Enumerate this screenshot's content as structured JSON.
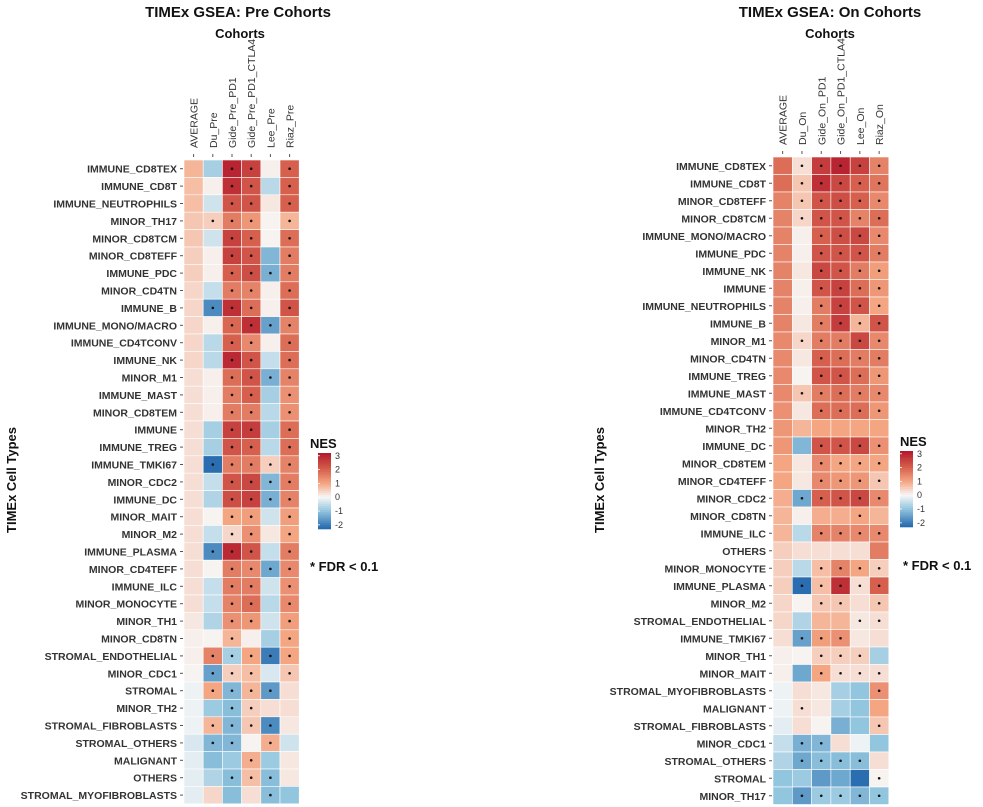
{
  "chart_data": [
    {
      "type": "heatmap",
      "title": "TIMEx GSEA: Pre Cohorts",
      "xlabel": "Cohorts",
      "ylabel": "TIMEx Cell Types",
      "legend_title": "NES",
      "legend_ticks": [
        3,
        2,
        1,
        0,
        -1,
        -2
      ],
      "color_range": [
        -2.3,
        3.2
      ],
      "annotation": "* FDR < 0.1",
      "columns": [
        "AVERAGE",
        "Du_Pre",
        "Gide_Pre_PD1",
        "Gide_Pre_PD1_CTLA4",
        "Lee_Pre",
        "Riaz_Pre"
      ],
      "rows": [
        {
          "label": "IMMUNE_CD8TEX",
          "nes": [
            0.8,
            -0.8,
            3,
            2.5,
            0.1,
            2
          ],
          "sig": "001101"
        },
        {
          "label": "IMMUNE_CD8T",
          "nes": [
            0.7,
            0.1,
            2.8,
            2.2,
            -0.6,
            2
          ],
          "sig": "001101"
        },
        {
          "label": "IMMUNE_NEUTROPHILS",
          "nes": [
            0.7,
            -0.4,
            2.2,
            2.2,
            0.2,
            2
          ],
          "sig": "001101"
        },
        {
          "label": "MINOR_TH17",
          "nes": [
            0.6,
            0.5,
            1.6,
            1.2,
            0.05,
            0.8
          ],
          "sig": "011101"
        },
        {
          "label": "MINOR_CD8TCM",
          "nes": [
            0.6,
            -0.4,
            2.5,
            2,
            0.05,
            1.8
          ],
          "sig": "001101"
        },
        {
          "label": "MINOR_CD8TEFF",
          "nes": [
            0.5,
            0.1,
            2.5,
            2.2,
            -1.2,
            1.6
          ],
          "sig": "001101"
        },
        {
          "label": "IMMUNE_PDC",
          "nes": [
            0.5,
            0.1,
            2,
            2.3,
            -1.3,
            1.6
          ],
          "sig": "001111"
        },
        {
          "label": "MINOR_CD4TN",
          "nes": [
            0.4,
            -0.5,
            1.6,
            1.5,
            0.1,
            1.8
          ],
          "sig": "001101"
        },
        {
          "label": "IMMUNE_B",
          "nes": [
            0.4,
            -1.8,
            2.8,
            1.8,
            0.1,
            2.2
          ],
          "sig": "011101"
        },
        {
          "label": "IMMUNE_MONO/MACRO",
          "nes": [
            0.4,
            0.1,
            1.9,
            2.8,
            -1.5,
            1.5
          ],
          "sig": "001111"
        },
        {
          "label": "IMMUNE_CD4TCONV",
          "nes": [
            0.4,
            -0.6,
            2,
            1.4,
            0.1,
            1.8
          ],
          "sig": "001101"
        },
        {
          "label": "IMMUNE_NK",
          "nes": [
            0.4,
            -0.6,
            2.9,
            2.2,
            -0.5,
            1.8
          ],
          "sig": "001101"
        },
        {
          "label": "MINOR_M1",
          "nes": [
            0.3,
            0.1,
            1.8,
            2.2,
            -1.3,
            1.5
          ],
          "sig": "001111"
        },
        {
          "label": "IMMUNE_MAST",
          "nes": [
            0.3,
            0.1,
            1.6,
            2,
            -0.8,
            1.3
          ],
          "sig": "001101"
        },
        {
          "label": "MINOR_CD8TEM",
          "nes": [
            0.3,
            0.1,
            1.6,
            1.6,
            -0.6,
            1.3
          ],
          "sig": "001101"
        },
        {
          "label": "IMMUNE",
          "nes": [
            0.3,
            -0.8,
            2.5,
            2.6,
            -0.8,
            1.8
          ],
          "sig": "001101"
        },
        {
          "label": "IMMUNE_TREG",
          "nes": [
            0.3,
            -0.8,
            2.2,
            2,
            -0.6,
            1.8
          ],
          "sig": "001101"
        },
        {
          "label": "IMMUNE_TMKI67",
          "nes": [
            0.3,
            -2.2,
            1.6,
            1.6,
            0.5,
            1.5
          ],
          "sig": "011111"
        },
        {
          "label": "MINOR_CDC2",
          "nes": [
            0.3,
            -0.5,
            2.2,
            2.4,
            -1.2,
            1.6
          ],
          "sig": "001111"
        },
        {
          "label": "IMMUNE_DC",
          "nes": [
            0.3,
            -0.7,
            2.3,
            2.5,
            -1.3,
            1.5
          ],
          "sig": "001111"
        },
        {
          "label": "MINOR_MAIT",
          "nes": [
            0.3,
            0.05,
            1,
            1.1,
            -0.4,
            1.1
          ],
          "sig": "001101"
        },
        {
          "label": "MINOR_M2",
          "nes": [
            0.3,
            -0.5,
            0.4,
            1.3,
            0.2,
            1
          ],
          "sig": "001101"
        },
        {
          "label": "IMMUNE_PLASMA",
          "nes": [
            0.3,
            -1.8,
            2.9,
            2.2,
            -0.5,
            1.6
          ],
          "sig": "011101"
        },
        {
          "label": "MINOR_CD4TEFF",
          "nes": [
            0.3,
            0.05,
            1.6,
            1.4,
            -1.4,
            1.4
          ],
          "sig": "001111"
        },
        {
          "label": "IMMUNE_ILC",
          "nes": [
            0.3,
            -0.5,
            1.6,
            1.6,
            -0.4,
            1.3
          ],
          "sig": "001101"
        },
        {
          "label": "MINOR_MONOCYTE",
          "nes": [
            0.3,
            -0.5,
            1.5,
            1.8,
            -0.6,
            1.4
          ],
          "sig": "001101"
        },
        {
          "label": "MINOR_TH1",
          "nes": [
            0.2,
            -0.7,
            1.3,
            1.2,
            -0.4,
            1.1
          ],
          "sig": "001101"
        },
        {
          "label": "MINOR_CD8TN",
          "nes": [
            0.1,
            0.05,
            0.8,
            0.1,
            -0.8,
            1
          ],
          "sig": "001001"
        },
        {
          "label": "STROMAL_ENDOTHELIAL",
          "nes": [
            0.1,
            1.5,
            -0.8,
            1,
            -2,
            1
          ],
          "sig": "011111"
        },
        {
          "label": "MINOR_CDC1",
          "nes": [
            0.05,
            -1.5,
            0.5,
            0.7,
            -0.3,
            0.6
          ],
          "sig": "011101"
        },
        {
          "label": "STROMAL",
          "nes": [
            -0.1,
            1,
            -1.2,
            0.8,
            -1.6,
            0.3
          ],
          "sig": "011110"
        },
        {
          "label": "MINOR_TH2",
          "nes": [
            -0.1,
            -0.9,
            -1.1,
            0.5,
            0.3,
            0.3
          ],
          "sig": "001100"
        },
        {
          "label": "STROMAL_FIBROBLASTS",
          "nes": [
            -0.1,
            0.8,
            -1.2,
            0.6,
            -1.8,
            0.2
          ],
          "sig": "011110"
        },
        {
          "label": "STROMAL_OTHERS",
          "nes": [
            -0.3,
            -1.2,
            -1.2,
            0.05,
            0.9,
            -0.4
          ],
          "sig": "011010"
        },
        {
          "label": "MALIGNANT",
          "nes": [
            -0.2,
            -1.1,
            -0.9,
            0.9,
            -0.9,
            0.2
          ],
          "sig": "000100"
        },
        {
          "label": "OTHERS",
          "nes": [
            -0.2,
            -0.7,
            -1.1,
            0.7,
            -1.1,
            0.2
          ],
          "sig": "001110"
        },
        {
          "label": "STROMAL_MYOFIBROBLASTS",
          "nes": [
            -0.2,
            0.4,
            -1.1,
            0.3,
            -1.1,
            -1
          ],
          "sig": "000010"
        }
      ]
    },
    {
      "type": "heatmap",
      "title": "TIMEx GSEA: On Cohorts",
      "xlabel": "Cohorts",
      "ylabel": "TIMEx Cell Types",
      "legend_title": "NES",
      "legend_ticks": [
        3,
        2,
        1,
        0,
        -1,
        -2
      ],
      "color_range": [
        -2.3,
        3.2
      ],
      "annotation": "* FDR < 0.1",
      "columns": [
        "AVERAGE",
        "Du_On",
        "Gide_On_PD1",
        "Gide_On_PD1_CTLA4",
        "Lee_On",
        "Riaz_On"
      ],
      "rows": [
        {
          "label": "IMMUNE_CD8TEX",
          "nes": [
            1.8,
            0.3,
            2.6,
            3,
            2.5,
            1.5
          ],
          "sig": "011111"
        },
        {
          "label": "IMMUNE_CD8T",
          "nes": [
            1.8,
            0.6,
            2.8,
            2.4,
            2,
            1.7
          ],
          "sig": "011111"
        },
        {
          "label": "MINOR_CD8TEFF",
          "nes": [
            1.5,
            0.6,
            2.2,
            2.3,
            2,
            1.4
          ],
          "sig": "011111"
        },
        {
          "label": "MINOR_CD8TCM",
          "nes": [
            1.5,
            0.4,
            2.2,
            2.2,
            1.5,
            1.8
          ],
          "sig": "011111"
        },
        {
          "label": "IMMUNE_MONO/MACRO",
          "nes": [
            1.5,
            0.1,
            2,
            2.3,
            2.4,
            1.4
          ],
          "sig": "001111"
        },
        {
          "label": "IMMUNE_PDC",
          "nes": [
            1.5,
            0.1,
            2.2,
            2.2,
            2.2,
            1.6
          ],
          "sig": "001111"
        },
        {
          "label": "IMMUNE_NK",
          "nes": [
            1.5,
            0.2,
            2.4,
            2.2,
            1.6,
            1.1
          ],
          "sig": "001111"
        },
        {
          "label": "IMMUNE",
          "nes": [
            1.5,
            0.1,
            2.2,
            2.5,
            1.8,
            1.2
          ],
          "sig": "001111"
        },
        {
          "label": "IMMUNE_NEUTROPHILS",
          "nes": [
            1.5,
            0.1,
            1.6,
            2.5,
            2.2,
            1
          ],
          "sig": "001111"
        },
        {
          "label": "IMMUNE_B",
          "nes": [
            1.5,
            0.2,
            1.6,
            2.6,
            0.8,
            2.2
          ],
          "sig": "001111"
        },
        {
          "label": "MINOR_M1",
          "nes": [
            1.4,
            0.4,
            1.6,
            1.6,
            2.4,
            1.4
          ],
          "sig": "011111"
        },
        {
          "label": "MINOR_CD4TN",
          "nes": [
            1.4,
            0.2,
            2,
            1.8,
            1.6,
            1.6
          ],
          "sig": "001111"
        },
        {
          "label": "IMMUNE_TREG",
          "nes": [
            1.4,
            0.05,
            2.2,
            2.2,
            1.8,
            1.2
          ],
          "sig": "001111"
        },
        {
          "label": "IMMUNE_MAST",
          "nes": [
            1.4,
            0.6,
            1.6,
            1.8,
            1.6,
            1.4
          ],
          "sig": "011111"
        },
        {
          "label": "IMMUNE_CD4TCONV",
          "nes": [
            1.3,
            0.2,
            1.8,
            1.8,
            1.8,
            1.2
          ],
          "sig": "001111"
        },
        {
          "label": "MINOR_TH2",
          "nes": [
            1.2,
            0.8,
            1,
            1,
            1,
            1
          ],
          "sig": "000000"
        },
        {
          "label": "IMMUNE_DC",
          "nes": [
            1.2,
            -1.2,
            2.2,
            2.2,
            2.4,
            1.3
          ],
          "sig": "001111"
        },
        {
          "label": "MINOR_CD8TEM",
          "nes": [
            1,
            0.2,
            1.4,
            1,
            1,
            1
          ],
          "sig": "001111"
        },
        {
          "label": "MINOR_CD4TEFF",
          "nes": [
            1,
            0.2,
            1.4,
            1.2,
            1.2,
            0.6
          ],
          "sig": "001111"
        },
        {
          "label": "MINOR_CDC2",
          "nes": [
            0.9,
            -1.4,
            2,
            2.2,
            2.4,
            1.4
          ],
          "sig": "011111"
        },
        {
          "label": "MINOR_CD8TN",
          "nes": [
            0.8,
            0.1,
            0.9,
            0.9,
            1,
            0.8
          ],
          "sig": "000010"
        },
        {
          "label": "IMMUNE_ILC",
          "nes": [
            0.8,
            -0.6,
            1.5,
            1.5,
            1.4,
            1.4
          ],
          "sig": "001111"
        },
        {
          "label": "OTHERS",
          "nes": [
            0.5,
            0.3,
            0.3,
            0.3,
            0.3,
            1.6
          ],
          "sig": "000000"
        },
        {
          "label": "MINOR_MONOCYTE",
          "nes": [
            0.5,
            -0.6,
            0.7,
            1.5,
            1,
            0.5
          ],
          "sig": "001111"
        },
        {
          "label": "IMMUNE_PLASMA",
          "nes": [
            0.5,
            -2.2,
            0.7,
            2.8,
            0.3,
            2
          ],
          "sig": "011111"
        },
        {
          "label": "MINOR_M2",
          "nes": [
            0.4,
            0.05,
            0.6,
            0.6,
            0.3,
            0.6
          ],
          "sig": "001101"
        },
        {
          "label": "STROMAL_ENDOTHELIAL",
          "nes": [
            0.4,
            -0.7,
            0.8,
            0.8,
            0.2,
            0.3
          ],
          "sig": "000011"
        },
        {
          "label": "IMMUNE_TMKI67",
          "nes": [
            0.3,
            -1.5,
            1.1,
            1.3,
            0.2,
            0.3
          ],
          "sig": "011100"
        },
        {
          "label": "MINOR_TH1",
          "nes": [
            0.1,
            0.05,
            0.5,
            0.5,
            0.5,
            -0.8
          ],
          "sig": "001110"
        },
        {
          "label": "MINOR_MAIT",
          "nes": [
            0.1,
            -1.4,
            1,
            0.3,
            0.3,
            0.3
          ],
          "sig": "001111"
        },
        {
          "label": "STROMAL_MYOFIBROBLASTS",
          "nes": [
            -0.1,
            0.3,
            0.2,
            -0.8,
            -1,
            1.3
          ],
          "sig": "000001"
        },
        {
          "label": "MALIGNANT",
          "nes": [
            -0.1,
            0.3,
            0.2,
            -0.8,
            -1,
            1
          ],
          "sig": "010000"
        },
        {
          "label": "STROMAL_FIBROBLASTS",
          "nes": [
            -0.2,
            0.3,
            0.05,
            -1.3,
            -1,
            0.6
          ],
          "sig": "000001"
        },
        {
          "label": "MINOR_CDC1",
          "nes": [
            -0.5,
            -1.3,
            -1.2,
            0.3,
            -0.1,
            -1
          ],
          "sig": "011000"
        },
        {
          "label": "STROMAL_OTHERS",
          "nes": [
            -0.7,
            -1.4,
            -1.1,
            -1.1,
            -1.1,
            0.3
          ],
          "sig": "011110"
        },
        {
          "label": "STROMAL",
          "nes": [
            -1,
            -0.9,
            -1.6,
            -1.4,
            -2.2,
            0.05
          ],
          "sig": "000001"
        },
        {
          "label": "MINOR_TH17",
          "nes": [
            -1,
            -1.6,
            -0.9,
            -0.9,
            -1.2,
            -1
          ],
          "sig": "011111"
        }
      ]
    }
  ]
}
